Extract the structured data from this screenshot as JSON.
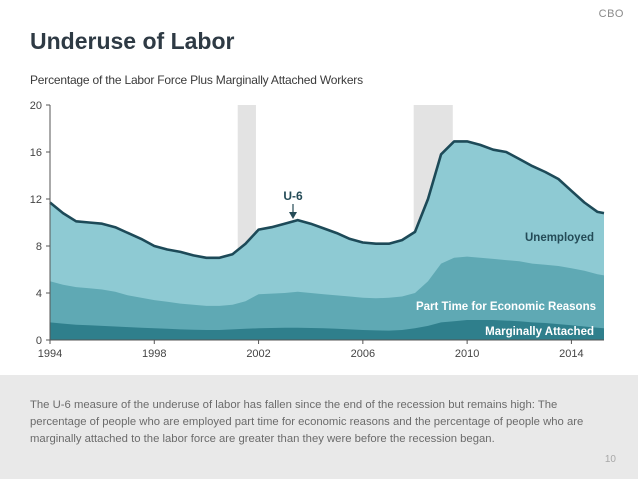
{
  "header": {
    "org": "CBO",
    "title": "Underuse of Labor",
    "subtitle": "Percentage of the Labor Force Plus Marginally Attached Workers"
  },
  "colors": {
    "total": "#8ecad3",
    "part_time": "#5fa9b4",
    "marginal": "#2f7f8c",
    "u6_line": "#1d4a58",
    "recession": "#e3e3e3",
    "axis": "#555555",
    "label_dark": "#244b57",
    "label_light": "#ffffff"
  },
  "chart_data": {
    "type": "area",
    "title": "Underuse of Labor",
    "subtitle": "Percentage of the Labor Force Plus Marginally Attached Workers",
    "xlabel": "",
    "ylabel": "",
    "xlim": [
      1994,
      2015.25
    ],
    "ylim": [
      0,
      20
    ],
    "x_ticks": [
      "1994",
      "1998",
      "2002",
      "2006",
      "2010",
      "2014"
    ],
    "y_ticks": [
      "0",
      "4",
      "8",
      "12",
      "16",
      "20"
    ],
    "grid": false,
    "stacked": true,
    "recessions": [
      [
        2001.2,
        2001.9
      ],
      [
        2007.95,
        2009.45
      ]
    ],
    "x": [
      1994,
      1994.5,
      1995,
      1995.5,
      1996,
      1996.5,
      1997,
      1997.5,
      1998,
      1998.5,
      1999,
      1999.5,
      2000,
      2000.5,
      2001,
      2001.5,
      2002,
      2002.5,
      2003,
      2003.5,
      2004,
      2004.5,
      2005,
      2005.5,
      2006,
      2006.5,
      2007,
      2007.5,
      2008,
      2008.5,
      2009,
      2009.5,
      2010,
      2010.5,
      2011,
      2011.5,
      2012,
      2012.5,
      2013,
      2013.5,
      2014,
      2014.5,
      2015,
      2015.25
    ],
    "series": [
      {
        "name": "Marginally Attached",
        "values": [
          1.5,
          1.4,
          1.3,
          1.25,
          1.2,
          1.15,
          1.1,
          1.05,
          1.0,
          0.95,
          0.9,
          0.88,
          0.85,
          0.85,
          0.9,
          0.95,
          1.0,
          1.02,
          1.05,
          1.05,
          1.02,
          1.0,
          0.95,
          0.9,
          0.85,
          0.82,
          0.8,
          0.85,
          1.0,
          1.2,
          1.5,
          1.6,
          1.7,
          1.7,
          1.7,
          1.65,
          1.6,
          1.5,
          1.45,
          1.35,
          1.25,
          1.15,
          1.05,
          1.0
        ]
      },
      {
        "name": "Part Time for Economic Reasons",
        "values": [
          5.0,
          4.7,
          4.5,
          4.4,
          4.3,
          4.1,
          3.8,
          3.6,
          3.4,
          3.25,
          3.1,
          3.0,
          2.9,
          2.9,
          3.0,
          3.3,
          3.9,
          3.95,
          4.0,
          4.1,
          4.0,
          3.9,
          3.8,
          3.7,
          3.6,
          3.55,
          3.6,
          3.7,
          4.0,
          5.0,
          6.5,
          7.0,
          7.1,
          7.0,
          6.9,
          6.8,
          6.7,
          6.5,
          6.4,
          6.3,
          6.1,
          5.9,
          5.6,
          5.5
        ]
      },
      {
        "name": "U-6",
        "values": [
          11.7,
          10.8,
          10.1,
          10.0,
          9.9,
          9.6,
          9.1,
          8.6,
          8.0,
          7.7,
          7.5,
          7.2,
          7.0,
          7.0,
          7.3,
          8.2,
          9.4,
          9.6,
          9.9,
          10.2,
          9.9,
          9.5,
          9.1,
          8.6,
          8.3,
          8.2,
          8.2,
          8.5,
          9.2,
          12.0,
          15.8,
          16.9,
          16.9,
          16.6,
          16.2,
          16.0,
          15.4,
          14.8,
          14.3,
          13.7,
          12.7,
          11.7,
          10.9,
          10.8
        ]
      }
    ],
    "labels": {
      "u6": "U-6",
      "unemployed": "Unemployed",
      "part_time": "Part Time for Economic Reasons",
      "marginal": "Marginally Attached"
    }
  },
  "footer": {
    "note": "The U-6 measure of the underuse of labor has fallen since the end of the recession but remains high: The percentage of people who are employed part time for economic reasons and the percentage of people who are marginally attached to the labor force are greater than they were before the recession began.",
    "page": "10"
  }
}
